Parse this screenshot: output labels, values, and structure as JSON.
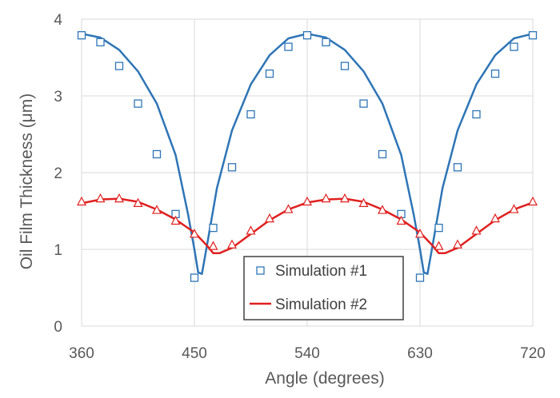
{
  "chart_data": {
    "type": "line",
    "xlabel": "Angle (degrees)",
    "ylabel": "Oil Film Thickness (μm)",
    "xlim": [
      360,
      720
    ],
    "ylim": [
      0,
      4
    ],
    "xticks": [
      "360",
      "450",
      "540",
      "630",
      "720"
    ],
    "yticks": [
      "0",
      "1",
      "2",
      "3",
      "4"
    ],
    "grid": true,
    "legend": {
      "placement": "lower-center",
      "entries": [
        "Simulation #1",
        "Simulation #2"
      ]
    },
    "series": [
      {
        "name": "Simulation #1",
        "marker": "square",
        "color": "#2E75B6",
        "points": [
          [
            360,
            3.79
          ],
          [
            375,
            3.7
          ],
          [
            390,
            3.39
          ],
          [
            405,
            2.9
          ],
          [
            420,
            2.24
          ],
          [
            435,
            1.46
          ],
          [
            450,
            0.63
          ],
          [
            465,
            1.28
          ],
          [
            480,
            2.07
          ],
          [
            495,
            2.76
          ],
          [
            510,
            3.29
          ],
          [
            525,
            3.64
          ],
          [
            540,
            3.79
          ],
          [
            555,
            3.7
          ],
          [
            570,
            3.39
          ],
          [
            585,
            2.9
          ],
          [
            600,
            2.24
          ],
          [
            615,
            1.46
          ],
          [
            630,
            0.63
          ],
          [
            645,
            1.28
          ],
          [
            660,
            2.07
          ],
          [
            675,
            2.76
          ],
          [
            690,
            3.29
          ],
          [
            705,
            3.64
          ],
          [
            720,
            3.79
          ]
        ],
        "curve": [
          [
            360,
            3.81
          ],
          [
            375,
            3.76
          ],
          [
            390,
            3.6
          ],
          [
            405,
            3.32
          ],
          [
            420,
            2.9
          ],
          [
            435,
            2.23
          ],
          [
            445,
            1.45
          ],
          [
            450,
            1.0
          ],
          [
            453,
            0.7
          ],
          [
            456,
            0.68
          ],
          [
            460,
            1.05
          ],
          [
            468,
            1.8
          ],
          [
            480,
            2.55
          ],
          [
            495,
            3.15
          ],
          [
            510,
            3.53
          ],
          [
            525,
            3.75
          ],
          [
            540,
            3.81
          ],
          [
            555,
            3.76
          ],
          [
            570,
            3.6
          ],
          [
            585,
            3.32
          ],
          [
            600,
            2.9
          ],
          [
            615,
            2.23
          ],
          [
            625,
            1.45
          ],
          [
            630,
            1.0
          ],
          [
            633,
            0.7
          ],
          [
            636,
            0.68
          ],
          [
            640,
            1.05
          ],
          [
            648,
            1.8
          ],
          [
            660,
            2.55
          ],
          [
            675,
            3.15
          ],
          [
            690,
            3.53
          ],
          [
            705,
            3.75
          ],
          [
            720,
            3.81
          ]
        ]
      },
      {
        "name": "Simulation #2",
        "marker": "triangle",
        "color": "#E02020",
        "points": [
          [
            360,
            1.62
          ],
          [
            375,
            1.66
          ],
          [
            390,
            1.66
          ],
          [
            405,
            1.6
          ],
          [
            420,
            1.51
          ],
          [
            435,
            1.37
          ],
          [
            450,
            1.2
          ],
          [
            465,
            1.04
          ],
          [
            480,
            1.06
          ],
          [
            495,
            1.24
          ],
          [
            510,
            1.4
          ],
          [
            525,
            1.52
          ],
          [
            540,
            1.62
          ],
          [
            555,
            1.66
          ],
          [
            570,
            1.66
          ],
          [
            585,
            1.6
          ],
          [
            600,
            1.51
          ],
          [
            615,
            1.37
          ],
          [
            630,
            1.2
          ],
          [
            645,
            1.04
          ],
          [
            660,
            1.06
          ],
          [
            675,
            1.24
          ],
          [
            690,
            1.4
          ],
          [
            705,
            1.52
          ],
          [
            720,
            1.62
          ]
        ],
        "curve": [
          [
            360,
            1.6
          ],
          [
            375,
            1.65
          ],
          [
            390,
            1.66
          ],
          [
            405,
            1.62
          ],
          [
            420,
            1.52
          ],
          [
            435,
            1.39
          ],
          [
            450,
            1.22
          ],
          [
            460,
            1.05
          ],
          [
            465,
            0.95
          ],
          [
            470,
            0.95
          ],
          [
            480,
            1.02
          ],
          [
            495,
            1.2
          ],
          [
            510,
            1.38
          ],
          [
            525,
            1.52
          ],
          [
            540,
            1.61
          ],
          [
            555,
            1.65
          ],
          [
            570,
            1.66
          ],
          [
            585,
            1.62
          ],
          [
            600,
            1.52
          ],
          [
            615,
            1.39
          ],
          [
            630,
            1.22
          ],
          [
            640,
            1.05
          ],
          [
            645,
            0.95
          ],
          [
            650,
            0.95
          ],
          [
            660,
            1.02
          ],
          [
            675,
            1.2
          ],
          [
            690,
            1.38
          ],
          [
            705,
            1.52
          ],
          [
            720,
            1.61
          ]
        ]
      }
    ]
  }
}
